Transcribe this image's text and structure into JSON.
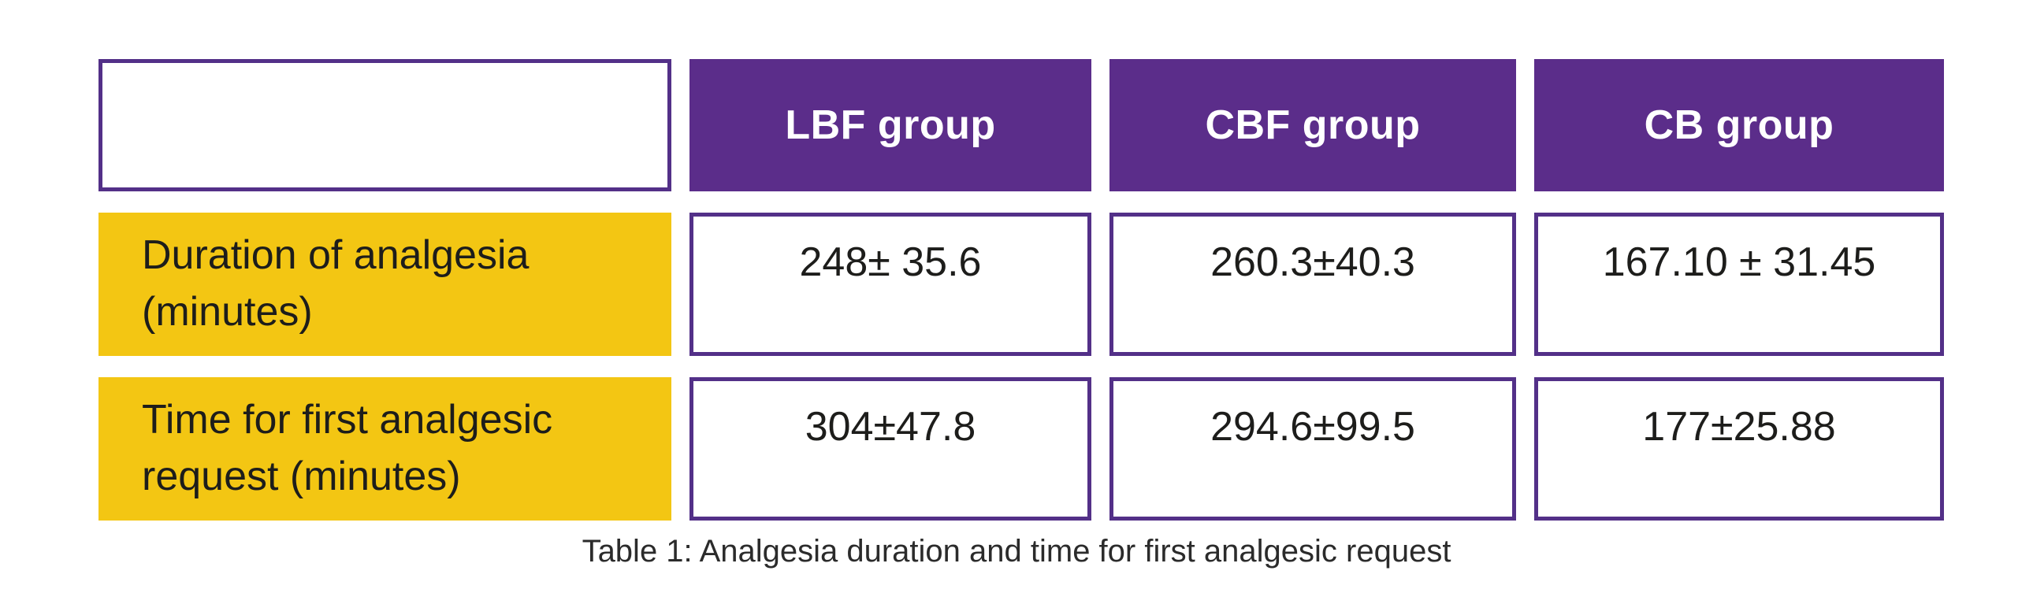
{
  "chart_data": {
    "type": "table",
    "title": "Table 1: Analgesia duration and time for first analgesic request",
    "columns": [
      "",
      "LBF group",
      "CBF group",
      "CB group"
    ],
    "rows": [
      {
        "label": "Duration of analgesia (minutes)",
        "values": [
          "248± 35.6",
          "260.3±40.3",
          "167.10 ± 31.45"
        ]
      },
      {
        "label": "Time for first analgesic request (minutes)",
        "values": [
          "304±47.8",
          "294.6±99.5",
          "177±25.88"
        ]
      }
    ]
  },
  "colors": {
    "header_bg": "#5b2d8a",
    "border_purple": "#533088",
    "row_label_bg": "#f3c613",
    "header_text": "#ffffff",
    "body_text": "#1d1d1b"
  }
}
